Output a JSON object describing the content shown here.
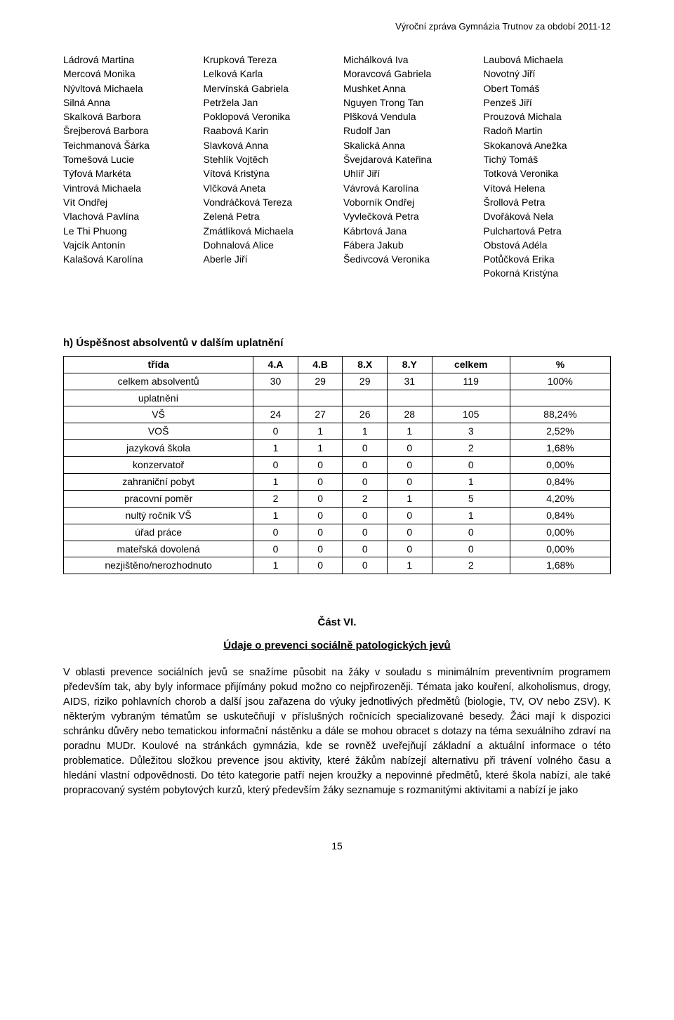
{
  "header": {
    "text": "Výroční zpráva Gymnázia Trutnov za období 2011-12"
  },
  "name_columns": [
    [
      "Ládrová Martina",
      "Mercová Monika",
      "Nývltová Michaela",
      "Silná Anna",
      "Skalková Barbora",
      "Šrejberová Barbora",
      "Teichmanová Šárka",
      "Tomešová Lucie",
      "Týfová Markéta",
      "Vintrová Michaela",
      "Vít Ondřej",
      "Vlachová Pavlína",
      "Le Thi Phuong",
      "Vajcík Antonín",
      "Kalašová Karolína"
    ],
    [
      "Krupková Tereza",
      "Lelková Karla",
      "Mervínská Gabriela",
      "Petržela Jan",
      "Poklopová Veronika",
      "Raabová Karin",
      "Slavková Anna",
      "Stehlík Vojtěch",
      "Vítová Kristýna",
      "Vlčková Aneta",
      "Vondráčková Tereza",
      "Zelená Petra",
      "Zmátlíková Michaela",
      "Dohnalová Alice",
      "Aberle Jiří"
    ],
    [
      "Michálková Iva",
      "Moravcová Gabriela",
      "Mushket Anna",
      "Nguyen Trong Tan",
      "Plšková Vendula",
      "Rudolf Jan",
      "Skalická Anna",
      "Švejdarová Kateřina",
      "Uhlíř Jiří",
      "Vávrová Karolína",
      "Voborník Ondřej",
      "Vyvlečková Petra",
      "Kábrtová Jana",
      "Fábera Jakub",
      "Šedivcová Veronika"
    ],
    [
      "Laubová Michaela",
      "Novotný Jiří",
      "Obert Tomáš",
      "Penzeš Jiří",
      "Prouzová Michala",
      "Radoň Martin",
      "Skokanová Anežka",
      "Tichý Tomáš",
      "Totková Veronika",
      "Vítová Helena",
      "Šrollová Petra",
      "Dvořáková Nela",
      "Pulchartová Petra",
      "Obstová Adéla",
      "Potůčková Erika",
      "Pokorná Kristýna"
    ]
  ],
  "section_h": "h) Úspěšnost absolventů v dalším uplatnění",
  "table": {
    "headers": [
      "třída",
      "4.A",
      "4.B",
      "8.X",
      "8.Y",
      "celkem",
      "%"
    ],
    "rows": [
      [
        "celkem absolventů",
        "30",
        "29",
        "29",
        "31",
        "119",
        "100%"
      ],
      [
        "uplatnění",
        "",
        "",
        "",
        "",
        "",
        ""
      ],
      [
        "VŠ",
        "24",
        "27",
        "26",
        "28",
        "105",
        "88,24%"
      ],
      [
        "VOŠ",
        "0",
        "1",
        "1",
        "1",
        "3",
        "2,52%"
      ],
      [
        "jazyková škola",
        "1",
        "1",
        "0",
        "0",
        "2",
        "1,68%"
      ],
      [
        "konzervatoř",
        "0",
        "0",
        "0",
        "0",
        "0",
        "0,00%"
      ],
      [
        "zahraniční pobyt",
        "1",
        "0",
        "0",
        "0",
        "1",
        "0,84%"
      ],
      [
        "pracovní poměr",
        "2",
        "0",
        "2",
        "1",
        "5",
        "4,20%"
      ],
      [
        "nultý ročník VŠ",
        "1",
        "0",
        "0",
        "0",
        "1",
        "0,84%"
      ],
      [
        "úřad práce",
        "0",
        "0",
        "0",
        "0",
        "0",
        "0,00%"
      ],
      [
        "mateřská dovolená",
        "0",
        "0",
        "0",
        "0",
        "0",
        "0,00%"
      ],
      [
        "nezjištěno/nerozhodnuto",
        "1",
        "0",
        "0",
        "1",
        "2",
        "1,68%"
      ]
    ]
  },
  "part6": {
    "title": "Část VI.",
    "subtitle": "Údaje o prevenci sociálně patologických jevů",
    "body": "V oblasti prevence sociálních jevů se snažíme působit na žáky v souladu s minimálním preventivním programem především tak, aby byly informace přijímány pokud možno co nejpřirozeněji. Témata jako kouření, alkoholismus, drogy, AIDS, riziko pohlavních chorob a další jsou zařazena do výuky jednotlivých předmětů (biologie, TV, OV nebo ZSV). K některým vybraným tématům se uskutečňují v příslušných ročnících specializované besedy. Žáci mají k dispozici schránku důvěry nebo tematickou informační nástěnku a dále se mohou obracet s dotazy na téma sexuálního zdraví na poradnu MUDr. Koulové na stránkách gymnázia, kde se rovněž uveřejňují základní a aktuální informace o této problematice. Důležitou složkou prevence jsou aktivity, které žákům nabízejí alternativu při trávení volného času a hledání vlastní odpovědnosti. Do této kategorie patří nejen kroužky a nepovinné předmětů, které škola nabízí, ale také propracovaný systém pobytových kurzů, který především žáky seznamuje s rozmanitými aktivitami a nabízí je jako"
  },
  "footer": {
    "page": "15"
  }
}
